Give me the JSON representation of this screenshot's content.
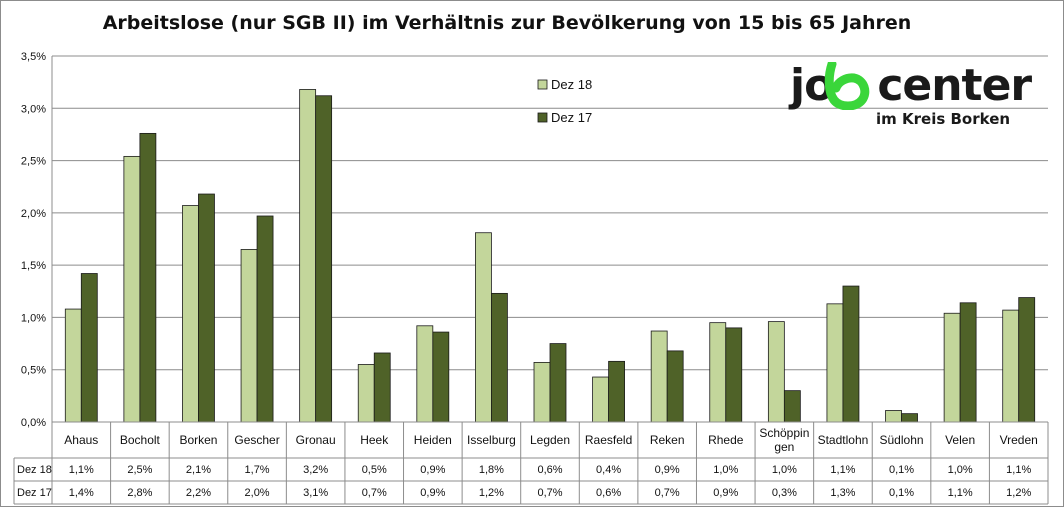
{
  "chart_data": {
    "type": "bar",
    "title": "Arbeitslose (nur SGB II) im Verhältnis zur Bevölkerung von 15 bis 65 Jahren",
    "categories": [
      "Ahaus",
      "Bocholt",
      "Borken",
      "Gescher",
      "Gronau",
      "Heek",
      "Heiden",
      "Isselburg",
      "Legden",
      "Raesfeld",
      "Reken",
      "Rhede",
      "Schöppingen",
      "Stadtlohn",
      "Südlohn",
      "Velen",
      "Vreden"
    ],
    "category_labels": [
      [
        "Ahaus"
      ],
      [
        "Bocholt"
      ],
      [
        "Borken"
      ],
      [
        "Gescher"
      ],
      [
        "Gronau"
      ],
      [
        "Heek"
      ],
      [
        "Heiden"
      ],
      [
        "Isselburg"
      ],
      [
        "Legden"
      ],
      [
        "Raesfeld"
      ],
      [
        "Reken"
      ],
      [
        "Rhede"
      ],
      [
        "Schöppin",
        "gen"
      ],
      [
        "Stadtlohn"
      ],
      [
        "Südlohn"
      ],
      [
        "Velen"
      ],
      [
        "Vreden"
      ]
    ],
    "series": [
      {
        "name": "Dez 18",
        "color": "#c3d69b",
        "values": [
          1.08,
          2.54,
          2.07,
          1.65,
          3.18,
          0.55,
          0.92,
          1.81,
          0.57,
          0.43,
          0.87,
          0.95,
          0.96,
          1.13,
          0.11,
          1.04,
          1.07
        ],
        "table_values": [
          "1,1%",
          "2,5%",
          "2,1%",
          "1,7%",
          "3,2%",
          "0,5%",
          "0,9%",
          "1,8%",
          "0,6%",
          "0,4%",
          "0,9%",
          "1,0%",
          "1,0%",
          "1,1%",
          "0,1%",
          "1,0%",
          "1,1%"
        ]
      },
      {
        "name": "Dez 17",
        "color": "#4f6228",
        "values": [
          1.42,
          2.76,
          2.18,
          1.97,
          3.12,
          0.66,
          0.86,
          1.23,
          0.75,
          0.58,
          0.68,
          0.9,
          0.3,
          1.3,
          0.08,
          1.14,
          1.19
        ],
        "table_values": [
          "1,4%",
          "2,8%",
          "2,2%",
          "2,0%",
          "3,1%",
          "0,7%",
          "0,9%",
          "1,2%",
          "0,7%",
          "0,6%",
          "0,7%",
          "0,9%",
          "0,3%",
          "1,3%",
          "0,1%",
          "1,1%",
          "1,2%"
        ]
      }
    ],
    "ylim": [
      0,
      3.5
    ],
    "y_ticks": [
      "0,0%",
      "0,5%",
      "1,0%",
      "1,5%",
      "2,0%",
      "2,5%",
      "3,0%",
      "3,5%"
    ],
    "grid": true,
    "legend": "top-center",
    "data_table": true
  },
  "logo": {
    "word_before": "jo",
    "word_after": "center",
    "subtitle": "im Kreis Borken",
    "accent_color": "#3ad63a"
  }
}
